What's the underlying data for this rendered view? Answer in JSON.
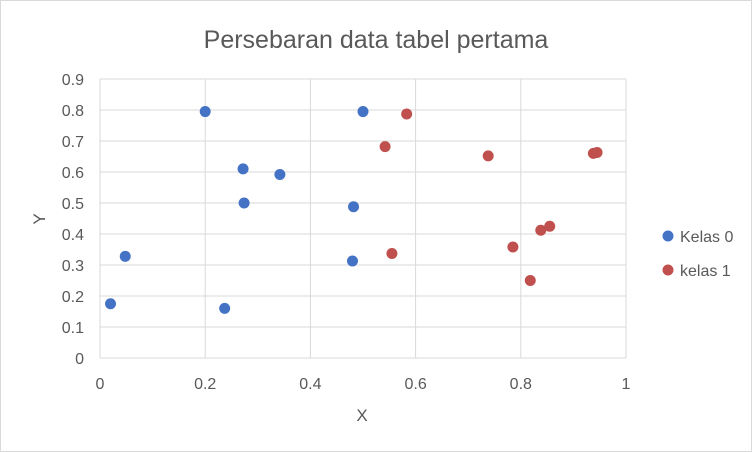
{
  "chart_data": {
    "type": "scatter",
    "title": "Persebaran data tabel pertama",
    "xlabel": "X",
    "ylabel": "Y",
    "xlim": [
      0,
      1
    ],
    "ylim": [
      0,
      0.9
    ],
    "grid": true,
    "legend_position": "right",
    "x_ticks": [
      "0",
      "0.2",
      "0.4",
      "0.6",
      "0.8",
      "1"
    ],
    "y_ticks": [
      "0",
      "0.1",
      "0.2",
      "0.3",
      "0.4",
      "0.5",
      "0.6",
      "0.7",
      "0.8",
      "0.9"
    ],
    "series": [
      {
        "name": "Kelas 0",
        "color": "#4472c4",
        "points": [
          [
            0.02,
            0.175
          ],
          [
            0.048,
            0.328
          ],
          [
            0.2,
            0.795
          ],
          [
            0.237,
            0.16
          ],
          [
            0.272,
            0.61
          ],
          [
            0.274,
            0.5
          ],
          [
            0.342,
            0.592
          ],
          [
            0.48,
            0.313
          ],
          [
            0.482,
            0.488
          ],
          [
            0.5,
            0.795
          ]
        ]
      },
      {
        "name": "kelas 1",
        "color": "#c0504d",
        "points": [
          [
            0.542,
            0.682
          ],
          [
            0.555,
            0.337
          ],
          [
            0.583,
            0.787
          ],
          [
            0.738,
            0.652
          ],
          [
            0.785,
            0.358
          ],
          [
            0.818,
            0.25
          ],
          [
            0.838,
            0.412
          ],
          [
            0.855,
            0.425
          ],
          [
            0.938,
            0.66
          ],
          [
            0.945,
            0.663
          ]
        ]
      }
    ]
  }
}
